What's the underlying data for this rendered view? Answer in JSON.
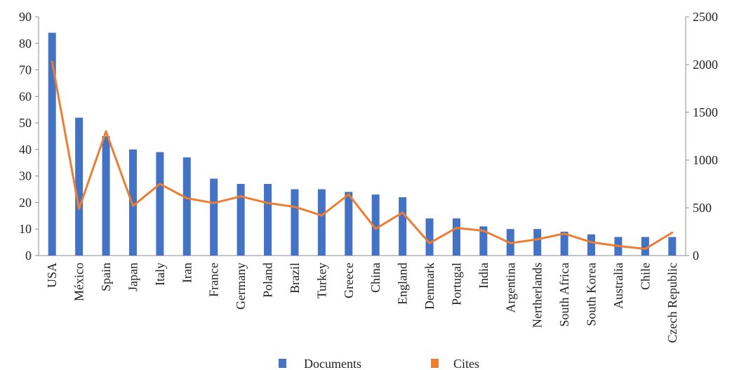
{
  "chart_data": {
    "type": "bar",
    "categories": [
      "USA",
      "México",
      "Spain",
      "Japan",
      "Italy",
      "Iran",
      "France",
      "Germany",
      "Poland",
      "Brazil",
      "Turkey",
      "Greece",
      "China",
      "England",
      "Denmark",
      "Portugal",
      "India",
      "Argentina",
      "Nertherlands",
      "South Africa",
      "South Korea",
      "Australia",
      "Chile",
      "Czech Republic"
    ],
    "series": [
      {
        "name": "Documents",
        "type": "bar",
        "axis": "left",
        "color": "#4472C4",
        "values": [
          84,
          52,
          45,
          40,
          39,
          37,
          29,
          27,
          27,
          25,
          25,
          24,
          23,
          22,
          14,
          14,
          11,
          10,
          10,
          9,
          8,
          7,
          7,
          7
        ]
      },
      {
        "name": "Cites",
        "type": "line",
        "axis": "right",
        "color": "#ED7D31",
        "values": [
          2030,
          490,
          1300,
          520,
          750,
          600,
          550,
          620,
          550,
          510,
          420,
          640,
          280,
          450,
          130,
          290,
          260,
          130,
          170,
          230,
          140,
          100,
          70,
          240
        ]
      }
    ],
    "y_left": {
      "min": 0,
      "max": 90,
      "ticks": [
        "0",
        "10",
        "20",
        "30",
        "40",
        "50",
        "60",
        "70",
        "80",
        "90"
      ]
    },
    "y_right": {
      "min": 0,
      "max": 2500,
      "ticks": [
        "0",
        "500",
        "1000",
        "1500",
        "2000",
        "2500"
      ]
    },
    "grid": false,
    "legend": {
      "placement": "bottom",
      "items": [
        "Documents",
        "Cites"
      ]
    }
  }
}
